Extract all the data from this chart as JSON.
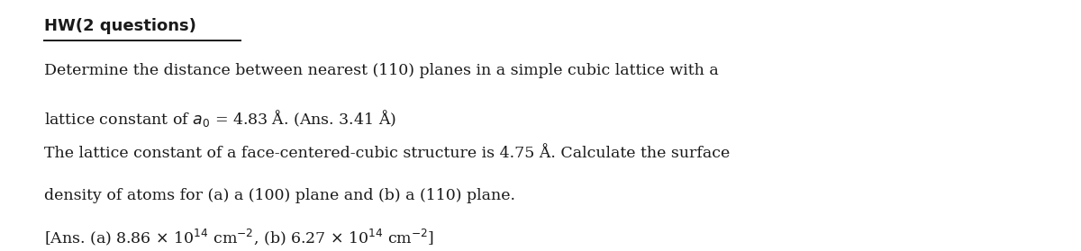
{
  "title": "HW(2 questions)",
  "line1": "Determine the distance between nearest (110) planes in a simple cubic lattice with a",
  "line2": "lattice constant of $a_0$ = 4.83 Å. (Ans. 3.41 Å)",
  "line3": "The lattice constant of a face-centered-cubic structure is 4.75 Å. Calculate the surface",
  "line4": "density of atoms for (a) a (100) plane and (b) a (110) plane.",
  "line5": "[Ans. (a) 8.86 × 10$^{14}$ cm$^{-2}$, (b) 6.27 × 10$^{14}$ cm$^{-2}$]",
  "bg_color": "#ffffff",
  "text_color": "#1a1a1a",
  "title_fontsize": 13,
  "body_fontsize": 12.5
}
